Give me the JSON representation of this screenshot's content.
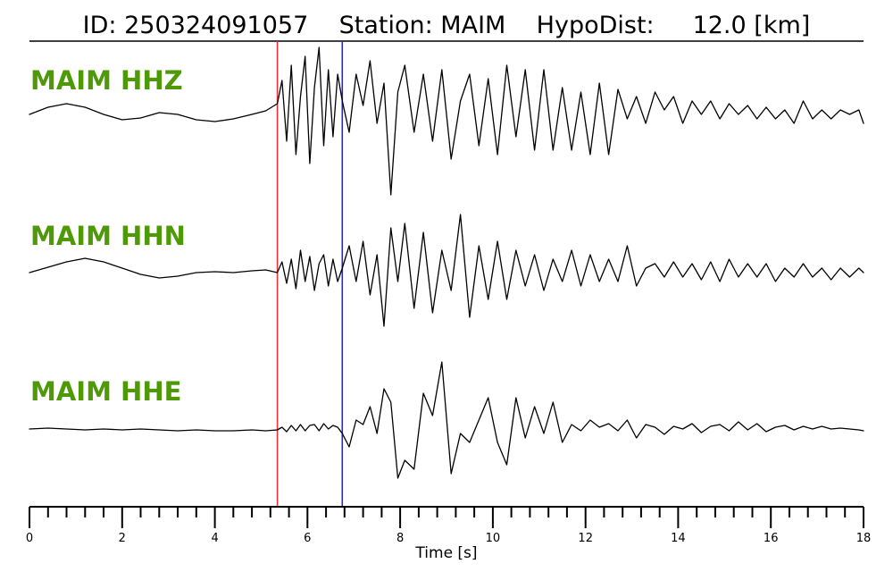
{
  "chart_data": {
    "type": "line",
    "title": {
      "id_label": "ID:",
      "id_value": "250324091057",
      "station_label": "Station:",
      "station_value": "MAIM",
      "hypodist_label": "HypoDist:",
      "hypodist_value": "12.0",
      "hypodist_unit": "[km]"
    },
    "xlabel": "Time [s]",
    "xlim": [
      0,
      18
    ],
    "x_ticks": [
      0,
      2,
      4,
      6,
      8,
      10,
      12,
      14,
      16,
      18
    ],
    "x_tick_labels": [
      "0",
      "2",
      "4",
      "6",
      "8",
      "10",
      "12",
      "14",
      "16",
      "18"
    ],
    "minor_tick_step": 0.4,
    "label_color": "#4e9a06",
    "picks": [
      {
        "name": "P",
        "time": 5.35,
        "color": "#e8323c"
      },
      {
        "name": "S",
        "time": 6.75,
        "color": "#2828c8"
      }
    ],
    "series": [
      {
        "name": "MAIM HHZ",
        "x": [
          0,
          0.4,
          0.8,
          1.2,
          1.6,
          2.0,
          2.4,
          2.8,
          3.2,
          3.6,
          4.0,
          4.4,
          4.8,
          5.1,
          5.35,
          5.45,
          5.55,
          5.65,
          5.75,
          5.85,
          5.95,
          6.05,
          6.15,
          6.25,
          6.35,
          6.45,
          6.55,
          6.65,
          6.75,
          6.9,
          7.05,
          7.2,
          7.35,
          7.5,
          7.65,
          7.8,
          7.95,
          8.1,
          8.3,
          8.5,
          8.7,
          8.9,
          9.1,
          9.3,
          9.5,
          9.7,
          9.9,
          10.1,
          10.3,
          10.5,
          10.7,
          10.9,
          11.1,
          11.3,
          11.5,
          11.7,
          11.9,
          12.1,
          12.3,
          12.5,
          12.7,
          12.9,
          13.1,
          13.3,
          13.5,
          13.7,
          13.9,
          14.1,
          14.3,
          14.5,
          14.7,
          14.9,
          15.1,
          15.3,
          15.5,
          15.7,
          15.9,
          16.1,
          16.3,
          16.5,
          16.7,
          16.9,
          17.1,
          17.3,
          17.5,
          17.7,
          17.9,
          18.0
        ],
        "y": [
          0.0,
          0.08,
          0.12,
          0.08,
          0.0,
          -0.06,
          -0.04,
          0.02,
          0.0,
          -0.06,
          -0.08,
          -0.05,
          0.0,
          0.04,
          0.12,
          0.38,
          -0.3,
          0.55,
          -0.45,
          0.2,
          0.65,
          -0.55,
          0.3,
          0.75,
          -0.35,
          0.5,
          -0.25,
          0.45,
          0.15,
          -0.2,
          0.45,
          0.1,
          0.6,
          -0.1,
          0.35,
          -0.9,
          0.25,
          0.55,
          -0.2,
          0.45,
          -0.3,
          0.5,
          -0.5,
          0.15,
          0.45,
          -0.35,
          0.4,
          -0.45,
          0.55,
          -0.25,
          0.5,
          -0.4,
          0.5,
          -0.4,
          0.3,
          -0.4,
          0.25,
          -0.45,
          0.35,
          -0.45,
          0.28,
          -0.05,
          0.2,
          -0.1,
          0.25,
          0.05,
          0.2,
          -0.1,
          0.15,
          0.0,
          0.15,
          -0.05,
          0.12,
          0.0,
          0.1,
          -0.05,
          0.08,
          -0.05,
          0.05,
          -0.1,
          0.15,
          -0.05,
          0.05,
          -0.05,
          0.05,
          0.0,
          0.05,
          -0.1
        ]
      },
      {
        "name": "MAIM HHN",
        "x": [
          0,
          0.4,
          0.8,
          1.2,
          1.6,
          2.0,
          2.4,
          2.8,
          3.2,
          3.6,
          4.0,
          4.4,
          4.8,
          5.1,
          5.35,
          5.45,
          5.55,
          5.65,
          5.75,
          5.85,
          5.95,
          6.05,
          6.15,
          6.25,
          6.35,
          6.45,
          6.55,
          6.65,
          6.75,
          6.9,
          7.05,
          7.2,
          7.35,
          7.5,
          7.65,
          7.8,
          7.95,
          8.1,
          8.3,
          8.5,
          8.7,
          8.9,
          9.1,
          9.3,
          9.5,
          9.7,
          9.9,
          10.1,
          10.3,
          10.5,
          10.7,
          10.9,
          11.1,
          11.3,
          11.5,
          11.7,
          11.9,
          12.1,
          12.3,
          12.5,
          12.7,
          12.9,
          13.1,
          13.3,
          13.5,
          13.7,
          13.9,
          14.1,
          14.3,
          14.5,
          14.7,
          14.9,
          15.1,
          15.3,
          15.5,
          15.7,
          15.9,
          16.1,
          16.3,
          16.5,
          16.7,
          16.9,
          17.1,
          17.3,
          17.5,
          17.7,
          17.9,
          18.0
        ],
        "y": [
          0.0,
          0.06,
          0.12,
          0.16,
          0.12,
          0.05,
          -0.02,
          -0.06,
          -0.04,
          0.0,
          0.01,
          0.0,
          0.02,
          0.03,
          0.0,
          0.12,
          -0.12,
          0.15,
          -0.18,
          0.25,
          -0.1,
          0.18,
          -0.2,
          0.1,
          0.2,
          -0.15,
          0.15,
          -0.1,
          0.05,
          0.3,
          -0.1,
          0.35,
          -0.25,
          0.2,
          -0.6,
          0.5,
          -0.1,
          0.55,
          -0.4,
          0.45,
          -0.45,
          0.25,
          -0.2,
          0.65,
          -0.5,
          0.3,
          -0.3,
          0.35,
          -0.3,
          0.25,
          -0.15,
          0.2,
          -0.2,
          0.15,
          -0.1,
          0.25,
          -0.15,
          0.2,
          -0.1,
          0.15,
          -0.1,
          0.3,
          -0.15,
          0.05,
          0.1,
          -0.05,
          0.12,
          -0.05,
          0.1,
          -0.08,
          0.12,
          -0.1,
          0.15,
          -0.05,
          0.1,
          -0.05,
          0.1,
          -0.1,
          0.05,
          -0.05,
          0.1,
          -0.05,
          0.05,
          -0.08,
          0.05,
          -0.05,
          0.05,
          0.0
        ]
      },
      {
        "name": "MAIM HHE",
        "x": [
          0,
          0.4,
          0.8,
          1.2,
          1.6,
          2.0,
          2.4,
          2.8,
          3.2,
          3.6,
          4.0,
          4.4,
          4.8,
          5.1,
          5.35,
          5.45,
          5.55,
          5.65,
          5.75,
          5.85,
          5.95,
          6.05,
          6.15,
          6.25,
          6.35,
          6.45,
          6.55,
          6.65,
          6.75,
          6.9,
          7.05,
          7.2,
          7.35,
          7.5,
          7.65,
          7.8,
          7.95,
          8.1,
          8.3,
          8.5,
          8.7,
          8.9,
          9.1,
          9.3,
          9.5,
          9.7,
          9.9,
          10.1,
          10.3,
          10.5,
          10.7,
          10.9,
          11.1,
          11.3,
          11.5,
          11.7,
          11.9,
          12.1,
          12.3,
          12.5,
          12.7,
          12.9,
          13.1,
          13.3,
          13.5,
          13.7,
          13.9,
          14.1,
          14.3,
          14.5,
          14.7,
          14.9,
          15.1,
          15.3,
          15.5,
          15.7,
          15.9,
          16.1,
          16.3,
          16.5,
          16.7,
          16.9,
          17.1,
          17.3,
          17.5,
          17.7,
          17.9,
          18.0
        ],
        "y": [
          0.0,
          0.01,
          0.0,
          -0.01,
          0.0,
          -0.01,
          0.0,
          -0.01,
          -0.02,
          -0.01,
          -0.02,
          -0.02,
          -0.01,
          -0.02,
          -0.01,
          0.02,
          -0.03,
          0.04,
          -0.02,
          0.05,
          -0.02,
          0.04,
          0.05,
          -0.02,
          0.06,
          0.0,
          0.04,
          0.02,
          -0.05,
          -0.2,
          0.1,
          0.05,
          0.25,
          -0.05,
          0.45,
          0.3,
          -0.55,
          -0.35,
          -0.45,
          0.4,
          0.15,
          0.75,
          -0.5,
          -0.05,
          -0.15,
          0.1,
          0.35,
          -0.15,
          -0.4,
          0.35,
          -0.1,
          0.25,
          -0.05,
          0.3,
          -0.15,
          0.05,
          -0.02,
          0.1,
          0.02,
          0.06,
          -0.02,
          0.1,
          -0.1,
          0.05,
          0.02,
          -0.06,
          0.03,
          0.0,
          0.06,
          -0.04,
          0.03,
          0.05,
          -0.02,
          0.08,
          -0.01,
          0.06,
          -0.03,
          0.02,
          0.04,
          -0.01,
          0.03,
          0.0,
          0.03,
          0.0,
          0.01,
          0.0,
          -0.01,
          -0.02
        ]
      }
    ]
  }
}
